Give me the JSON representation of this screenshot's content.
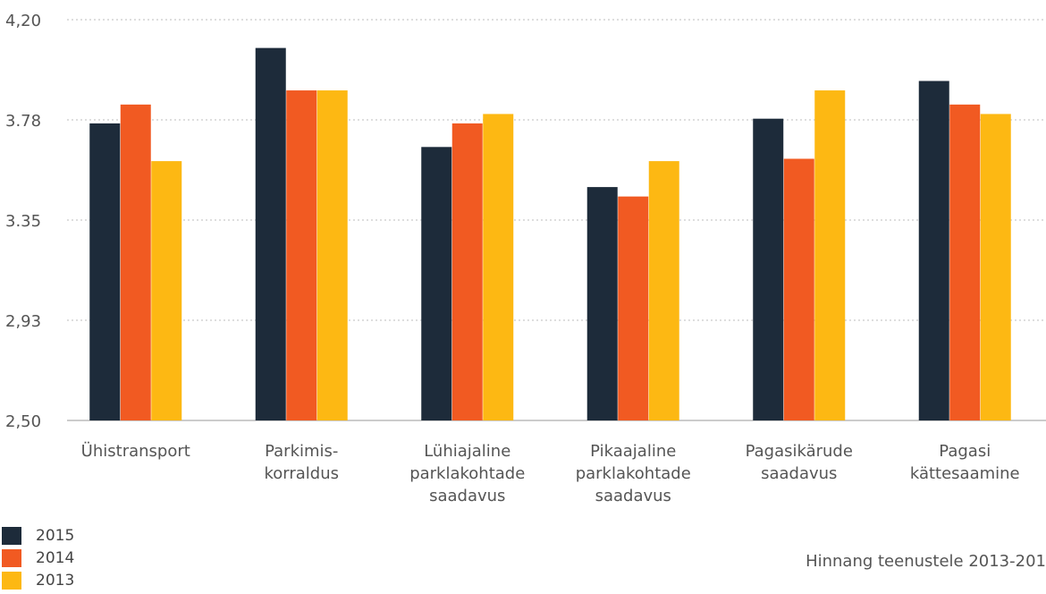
{
  "chart_data": {
    "type": "bar",
    "categories": [
      [
        "Ühistransport"
      ],
      [
        "Parkimis-",
        "korraldus"
      ],
      [
        "Lühiajaline",
        "parklakohtade",
        "saadavus"
      ],
      [
        "Pikaajaline",
        "parklakohtade",
        "saadavus"
      ],
      [
        "Pagasikärude",
        "saadavus"
      ],
      [
        "Pagasi",
        "kättesaamine"
      ]
    ],
    "series": [
      {
        "name": "2015",
        "color": "#1d2b3a",
        "values": [
          3.76,
          4.08,
          3.66,
          3.49,
          3.78,
          3.94
        ]
      },
      {
        "name": "2014",
        "color": "#f15a22",
        "values": [
          3.84,
          3.9,
          3.76,
          3.45,
          3.61,
          3.84
        ]
      },
      {
        "name": "2013",
        "color": "#fdb813",
        "values": [
          3.6,
          3.9,
          3.8,
          3.6,
          3.9,
          3.8
        ]
      }
    ],
    "yticks": [
      "4,20",
      "3.78",
      "3.35",
      "2,93",
      "2,50"
    ],
    "ylim": [
      2.5,
      4.2
    ],
    "grid": true,
    "legend_position": "bottom-left",
    "note": "Hinnang teenustele 2013-201"
  }
}
